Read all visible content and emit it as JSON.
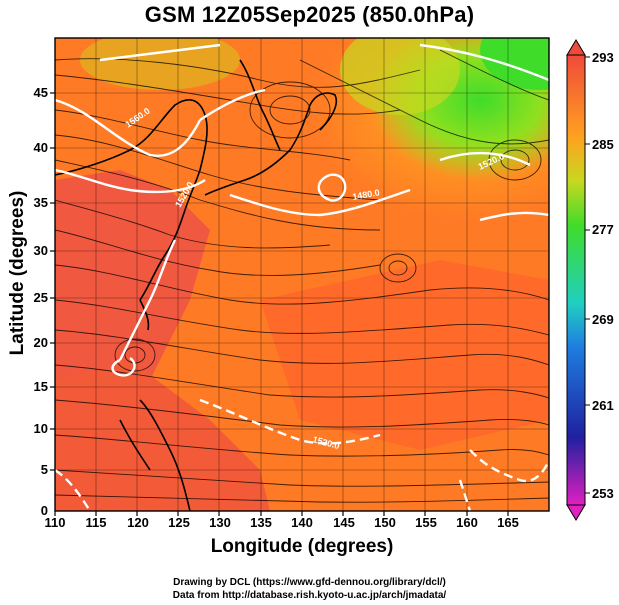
{
  "title": "GSM 12Z05Sep2025 (850.0hPa)",
  "xlabel": "Longitude (degrees)",
  "ylabel": "Latitude  (degrees)",
  "credit_line1": "Drawing by DCL (https://www.gfd-dennou.org/library/dcl/)",
  "credit_line2": "Data from http://database.rish.kyoto-u.ac.jp/arch/jmadata/",
  "x_ticks": [
    "110",
    "115",
    "120",
    "125",
    "130",
    "135",
    "140",
    "145",
    "150",
    "155",
    "160",
    "165"
  ],
  "y_ticks": [
    "45",
    "40",
    "35",
    "30",
    "25",
    "20",
    "15",
    "10",
    "5",
    "0"
  ],
  "colorbar_ticks": [
    "293",
    "285",
    "277",
    "269",
    "261",
    "253"
  ],
  "contour_labels": [
    "1560.0",
    "1520.0",
    "1480.0",
    "1520.0",
    "1520.0"
  ],
  "colors": {
    "warm": "#f04a3a",
    "mid": "#ff8a1e",
    "cool": "#3fdc2a",
    "contour": "#ffffff",
    "streamline": "#000000"
  },
  "chart_data": {
    "type": "heatmap",
    "title": "GSM 12Z05Sep2025 (850.0hPa)",
    "xlabel": "Longitude (degrees)",
    "ylabel": "Latitude  (degrees)",
    "xlim": [
      110,
      170
    ],
    "ylim": [
      0,
      50
    ],
    "colorbar_range": [
      253,
      293
    ],
    "colorbar_ticks": [
      293,
      285,
      277,
      269,
      261,
      253
    ],
    "overlays": [
      "geopotential height contours",
      "wind streamlines",
      "coastlines",
      "grid"
    ]
  }
}
